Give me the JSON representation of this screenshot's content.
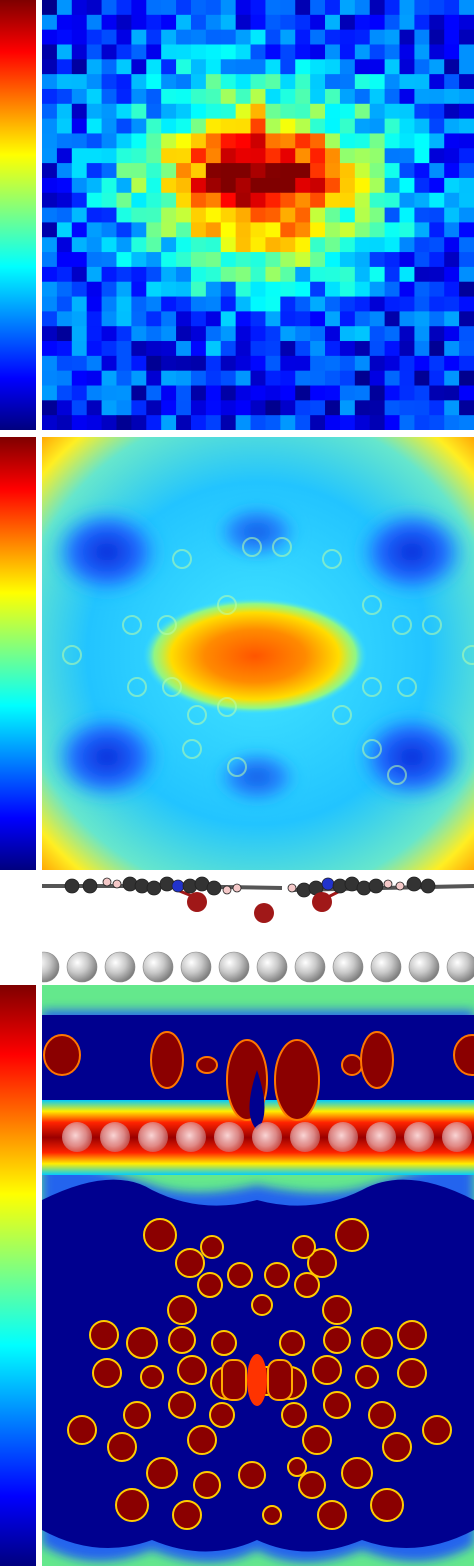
{
  "colormap": {
    "name": "jet",
    "stops": [
      "#00007f",
      "#0000ff",
      "#00ffff",
      "#ffff00",
      "#ff0000",
      "#7f0000"
    ]
  },
  "panels": [
    {
      "name": "experimental-map",
      "style": "pixelated"
    },
    {
      "name": "simulated-map",
      "style": "smooth"
    },
    {
      "name": "side-view-structure",
      "style": "ball-and-stick"
    },
    {
      "name": "charge-density-map",
      "style": "smooth"
    }
  ],
  "atoms": {
    "carbon": "#333333",
    "hydrogen": "#f4c8c8",
    "nitrogen": "#2233cc",
    "bromine": "#a01818",
    "metal": "#c4c4c4"
  }
}
